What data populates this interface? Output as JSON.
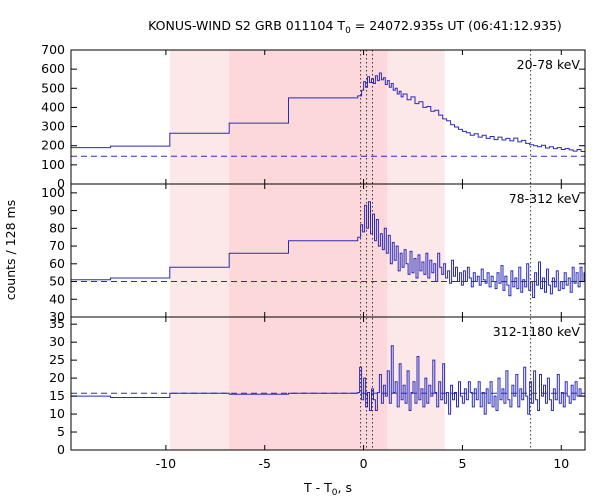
{
  "title_main": "KONUS-WIND S2 GRB 011104 T",
  "title_sub": "0",
  "title_rest": " = 24072.935s UT (06:41:12.935)",
  "ylabel": "counts / 128 ms",
  "xlabel": "T - T",
  "xlabel_sub": "0",
  "xlabel_rest": ", s",
  "colors": {
    "line": "#2b2bb8",
    "bg": "#e5474f",
    "outer_band": "#fde8e9",
    "inner_band": "#fcd8db",
    "vline": "#333333"
  },
  "chart_data": {
    "type": "line",
    "x_axis": {
      "min": -14.8,
      "max": 11.2,
      "ticks": [
        -10,
        -5,
        0,
        5,
        10
      ]
    },
    "bands": [
      {
        "x0": -9.8,
        "x1": 4.1,
        "style": "outer"
      },
      {
        "x0": -6.8,
        "x1": 1.2,
        "style": "inner"
      }
    ],
    "vlines": [
      -0.15,
      0.15,
      0.45,
      8.45
    ],
    "panels": [
      {
        "label": "20-78 keV",
        "ymin": 0,
        "ymax": 700,
        "ticks": [
          0,
          100,
          200,
          300,
          400,
          500,
          600,
          700
        ],
        "background": 145,
        "segments": [
          [
            -14.8,
            190
          ],
          [
            -12.8,
            198
          ],
          [
            -9.8,
            265
          ],
          [
            -6.8,
            318
          ],
          [
            -3.8,
            450
          ],
          [
            -0.3,
            460
          ],
          [
            -0.1,
            490
          ],
          [
            0.0,
            535
          ],
          [
            0.1,
            505
          ],
          [
            0.2,
            560
          ],
          [
            0.3,
            530
          ],
          [
            0.4,
            550
          ],
          [
            0.5,
            525
          ],
          [
            0.6,
            565
          ],
          [
            0.7,
            540
          ],
          [
            0.8,
            580
          ],
          [
            0.9,
            545
          ],
          [
            1.0,
            555
          ],
          [
            1.1,
            520
          ],
          [
            1.2,
            540
          ],
          [
            1.3,
            505
          ],
          [
            1.4,
            525
          ],
          [
            1.5,
            490
          ],
          [
            1.6,
            500
          ],
          [
            1.7,
            470
          ],
          [
            1.8,
            485
          ],
          [
            1.9,
            455
          ],
          [
            2.0,
            470
          ],
          [
            2.2,
            440
          ],
          [
            2.4,
            455
          ],
          [
            2.6,
            420
          ],
          [
            2.8,
            430
          ],
          [
            3.0,
            400
          ],
          [
            3.2,
            405
          ],
          [
            3.4,
            380
          ],
          [
            3.6,
            385
          ],
          [
            3.8,
            360
          ],
          [
            4.0,
            340
          ],
          [
            4.2,
            330
          ],
          [
            4.4,
            310
          ],
          [
            4.6,
            298
          ],
          [
            4.8,
            285
          ],
          [
            5.0,
            275
          ],
          [
            5.2,
            268
          ],
          [
            5.4,
            255
          ],
          [
            5.6,
            262
          ],
          [
            5.8,
            245
          ],
          [
            6.0,
            255
          ],
          [
            6.2,
            238
          ],
          [
            6.4,
            248
          ],
          [
            6.6,
            232
          ],
          [
            6.8,
            245
          ],
          [
            7.0,
            230
          ],
          [
            7.2,
            238
          ],
          [
            7.4,
            225
          ],
          [
            7.6,
            240
          ],
          [
            7.8,
            220
          ],
          [
            8.0,
            228
          ],
          [
            8.2,
            212
          ],
          [
            8.4,
            205
          ],
          [
            8.6,
            200
          ],
          [
            8.8,
            195
          ],
          [
            9.0,
            202
          ],
          [
            9.2,
            188
          ],
          [
            9.4,
            195
          ],
          [
            9.6,
            185
          ],
          [
            9.8,
            190
          ],
          [
            10.0,
            180
          ],
          [
            10.2,
            186
          ],
          [
            10.4,
            178
          ],
          [
            10.6,
            172
          ],
          [
            10.8,
            180
          ],
          [
            11.0,
            170
          ],
          [
            11.2,
            172
          ]
        ]
      },
      {
        "label": "78-312 keV",
        "ymin": 30,
        "ymax": 105,
        "ticks": [
          30,
          40,
          50,
          60,
          70,
          80,
          90,
          100
        ],
        "background": 50,
        "segments": [
          [
            -14.8,
            51
          ],
          [
            -12.8,
            52
          ],
          [
            -9.8,
            58
          ],
          [
            -6.8,
            66
          ],
          [
            -3.8,
            73
          ],
          [
            -0.3,
            75
          ],
          [
            -0.15,
            82
          ],
          [
            -0.05,
            78
          ],
          [
            0.05,
            93
          ],
          [
            0.15,
            80
          ],
          [
            0.25,
            95
          ],
          [
            0.35,
            77
          ],
          [
            0.45,
            88
          ],
          [
            0.55,
            73
          ],
          [
            0.65,
            85
          ],
          [
            0.75,
            70
          ],
          [
            0.85,
            77
          ],
          [
            0.95,
            68
          ],
          [
            1.05,
            80
          ],
          [
            1.15,
            66
          ],
          [
            1.25,
            76
          ],
          [
            1.35,
            60
          ],
          [
            1.45,
            72
          ],
          [
            1.55,
            62
          ],
          [
            1.65,
            70
          ],
          [
            1.75,
            56
          ],
          [
            1.85,
            66
          ],
          [
            1.95,
            58
          ],
          [
            2.05,
            68
          ],
          [
            2.15,
            60
          ],
          [
            2.25,
            54
          ],
          [
            2.35,
            67
          ],
          [
            2.45,
            55
          ],
          [
            2.55,
            63
          ],
          [
            2.65,
            52
          ],
          [
            2.75,
            65
          ],
          [
            2.85,
            56
          ],
          [
            2.95,
            61
          ],
          [
            3.05,
            54
          ],
          [
            3.15,
            66
          ],
          [
            3.25,
            52
          ],
          [
            3.35,
            62
          ],
          [
            3.45,
            55
          ],
          [
            3.55,
            60
          ],
          [
            3.65,
            50
          ],
          [
            3.75,
            66
          ],
          [
            3.85,
            58
          ],
          [
            3.95,
            54
          ],
          [
            4.05,
            60
          ],
          [
            4.15,
            52
          ],
          [
            4.25,
            56
          ],
          [
            4.35,
            49
          ],
          [
            4.45,
            62
          ],
          [
            4.55,
            53
          ],
          [
            4.65,
            58
          ],
          [
            4.75,
            50
          ],
          [
            4.85,
            55
          ],
          [
            4.95,
            48
          ],
          [
            5.05,
            56
          ],
          [
            5.15,
            50
          ],
          [
            5.25,
            58
          ],
          [
            5.35,
            52
          ],
          [
            5.45,
            47
          ],
          [
            5.55,
            55
          ],
          [
            5.65,
            50
          ],
          [
            5.75,
            53
          ],
          [
            5.85,
            48
          ],
          [
            5.95,
            57
          ],
          [
            6.05,
            51
          ],
          [
            6.15,
            49
          ],
          [
            6.25,
            55
          ],
          [
            6.35,
            47
          ],
          [
            6.45,
            53
          ],
          [
            6.55,
            50
          ],
          [
            6.65,
            46
          ],
          [
            6.75,
            55
          ],
          [
            6.85,
            49
          ],
          [
            6.95,
            59
          ],
          [
            7.05,
            45
          ],
          [
            7.15,
            53
          ],
          [
            7.25,
            48
          ],
          [
            7.35,
            42
          ],
          [
            7.45,
            56
          ],
          [
            7.55,
            47
          ],
          [
            7.65,
            52
          ],
          [
            7.75,
            46
          ],
          [
            7.85,
            58
          ],
          [
            7.95,
            44
          ],
          [
            8.05,
            51
          ],
          [
            8.15,
            47
          ],
          [
            8.25,
            60
          ],
          [
            8.35,
            45
          ],
          [
            8.45,
            50
          ],
          [
            8.55,
            41
          ],
          [
            8.65,
            55
          ],
          [
            8.75,
            48
          ],
          [
            8.85,
            61
          ],
          [
            8.95,
            46
          ],
          [
            9.05,
            52
          ],
          [
            9.15,
            44
          ],
          [
            9.25,
            57
          ],
          [
            9.35,
            48
          ],
          [
            9.45,
            43
          ],
          [
            9.55,
            52
          ],
          [
            9.65,
            47
          ],
          [
            9.75,
            56
          ],
          [
            9.85,
            45
          ],
          [
            9.95,
            50
          ],
          [
            10.05,
            46
          ],
          [
            10.15,
            55
          ],
          [
            10.25,
            48
          ],
          [
            10.35,
            52
          ],
          [
            10.45,
            44
          ],
          [
            10.55,
            58
          ],
          [
            10.65,
            49
          ],
          [
            10.75,
            55
          ],
          [
            10.85,
            47
          ],
          [
            10.95,
            58
          ],
          [
            11.05,
            50
          ],
          [
            11.15,
            55
          ],
          [
            11.2,
            55
          ]
        ]
      },
      {
        "label": "312-1180 keV",
        "ymin": 0,
        "ymax": 37,
        "ticks": [
          0,
          5,
          10,
          15,
          20,
          25,
          30,
          35
        ],
        "background": 15.8,
        "segments": [
          [
            -14.8,
            15
          ],
          [
            -12.8,
            14.6
          ],
          [
            -9.8,
            15.8
          ],
          [
            -6.8,
            15.5
          ],
          [
            -3.8,
            15.8
          ],
          [
            -0.3,
            16
          ],
          [
            -0.2,
            23
          ],
          [
            -0.1,
            14
          ],
          [
            0.0,
            20
          ],
          [
            0.1,
            12
          ],
          [
            0.2,
            16
          ],
          [
            0.3,
            11
          ],
          [
            0.4,
            17
          ],
          [
            0.5,
            14
          ],
          [
            0.6,
            11
          ],
          [
            0.7,
            16
          ],
          [
            0.8,
            21
          ],
          [
            0.9,
            13
          ],
          [
            1.0,
            18
          ],
          [
            1.1,
            15
          ],
          [
            1.2,
            22
          ],
          [
            1.3,
            13
          ],
          [
            1.4,
            29
          ],
          [
            1.5,
            16
          ],
          [
            1.6,
            19
          ],
          [
            1.7,
            12
          ],
          [
            1.8,
            24
          ],
          [
            1.9,
            14
          ],
          [
            2.0,
            18
          ],
          [
            2.1,
            13
          ],
          [
            2.2,
            22
          ],
          [
            2.3,
            11
          ],
          [
            2.4,
            16
          ],
          [
            2.5,
            19
          ],
          [
            2.6,
            13
          ],
          [
            2.7,
            26
          ],
          [
            2.8,
            14
          ],
          [
            2.9,
            17
          ],
          [
            3.0,
            12
          ],
          [
            3.1,
            20
          ],
          [
            3.2,
            13
          ],
          [
            3.3,
            18
          ],
          [
            3.4,
            15
          ],
          [
            3.5,
            25
          ],
          [
            3.6,
            16
          ],
          [
            3.7,
            12
          ],
          [
            3.8,
            19
          ],
          [
            3.9,
            14
          ],
          [
            4.0,
            24
          ],
          [
            4.1,
            13
          ],
          [
            4.2,
            16
          ],
          [
            4.3,
            10
          ],
          [
            4.4,
            18
          ],
          [
            4.5,
            14
          ],
          [
            4.6,
            16
          ],
          [
            4.7,
            12
          ],
          [
            4.8,
            19
          ],
          [
            4.9,
            15
          ],
          [
            5.0,
            13
          ],
          [
            5.1,
            17
          ],
          [
            5.2,
            14
          ],
          [
            5.3,
            19
          ],
          [
            5.4,
            16
          ],
          [
            5.5,
            12
          ],
          [
            5.6,
            17
          ],
          [
            5.7,
            14
          ],
          [
            5.8,
            19
          ],
          [
            5.9,
            12
          ],
          [
            6.0,
            16
          ],
          [
            6.1,
            10
          ],
          [
            6.2,
            17
          ],
          [
            6.3,
            13
          ],
          [
            6.4,
            19
          ],
          [
            6.5,
            12
          ],
          [
            6.6,
            15
          ],
          [
            6.7,
            11
          ],
          [
            6.8,
            20
          ],
          [
            6.9,
            14
          ],
          [
            7.0,
            17
          ],
          [
            7.1,
            13
          ],
          [
            7.2,
            22
          ],
          [
            7.3,
            14
          ],
          [
            7.4,
            12
          ],
          [
            7.5,
            18
          ],
          [
            7.6,
            15
          ],
          [
            7.7,
            21
          ],
          [
            7.8,
            12
          ],
          [
            7.9,
            17
          ],
          [
            8.0,
            14
          ],
          [
            8.1,
            23
          ],
          [
            8.2,
            15
          ],
          [
            8.3,
            10
          ],
          [
            8.4,
            19
          ],
          [
            8.5,
            13
          ],
          [
            8.6,
            22
          ],
          [
            8.7,
            14
          ],
          [
            8.8,
            11
          ],
          [
            8.9,
            21
          ],
          [
            9.0,
            15
          ],
          [
            9.1,
            18
          ],
          [
            9.2,
            13
          ],
          [
            9.3,
            20
          ],
          [
            9.4,
            14
          ],
          [
            9.5,
            11
          ],
          [
            9.6,
            17
          ],
          [
            9.7,
            14
          ],
          [
            9.8,
            21
          ],
          [
            9.9,
            13
          ],
          [
            10.0,
            16
          ],
          [
            10.1,
            12
          ],
          [
            10.2,
            19
          ],
          [
            10.3,
            15
          ],
          [
            10.4,
            13
          ],
          [
            10.5,
            18
          ],
          [
            10.6,
            14
          ],
          [
            10.7,
            19
          ],
          [
            10.8,
            15
          ],
          [
            10.9,
            17
          ],
          [
            11.0,
            15
          ],
          [
            11.2,
            15
          ]
        ]
      }
    ]
  }
}
